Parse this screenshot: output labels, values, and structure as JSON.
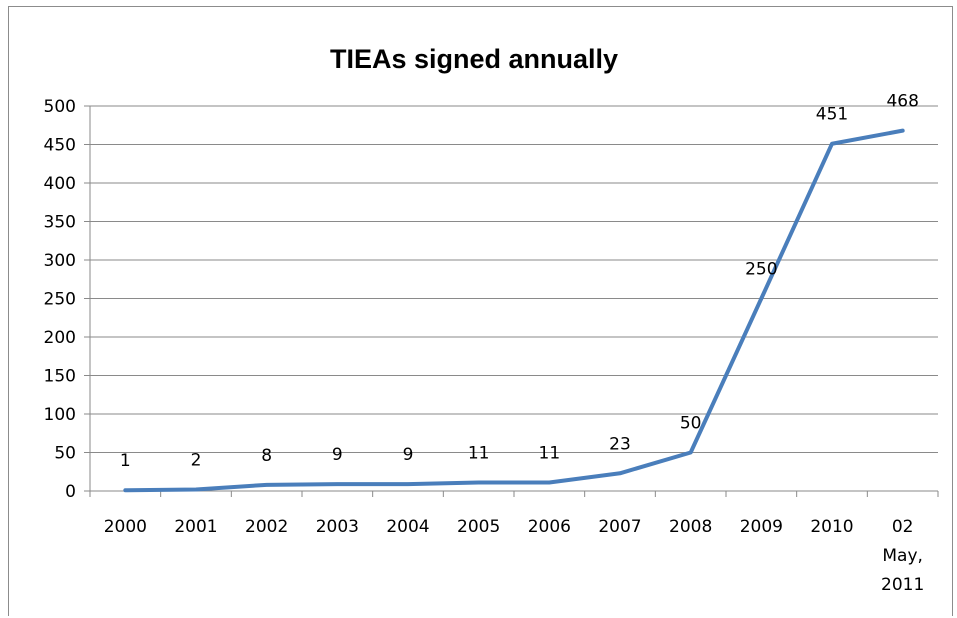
{
  "chart_data": {
    "type": "line",
    "title": "TIEAs signed annually",
    "xlabel": "",
    "ylabel": "",
    "categories": [
      "2000",
      "2001",
      "2002",
      "2003",
      "2004",
      "2005",
      "2006",
      "2007",
      "2008",
      "2009",
      "2010",
      "02 May, 2011"
    ],
    "category_lines": [
      [
        "2000"
      ],
      [
        "2001"
      ],
      [
        "2002"
      ],
      [
        "2003"
      ],
      [
        "2004"
      ],
      [
        "2005"
      ],
      [
        "2006"
      ],
      [
        "2007"
      ],
      [
        "2008"
      ],
      [
        "2009"
      ],
      [
        "2010"
      ],
      [
        "02",
        "May,",
        "2011"
      ]
    ],
    "values": [
      1,
      2,
      8,
      9,
      9,
      11,
      11,
      23,
      50,
      250,
      451,
      468
    ],
    "data_labels": [
      "1",
      "2",
      "8",
      "9",
      "9",
      "11",
      "11",
      "23",
      "50",
      "250",
      "451",
      "468"
    ],
    "y_ticks": [
      "0",
      "50",
      "100",
      "150",
      "200",
      "250",
      "300",
      "350",
      "400",
      "450",
      "500"
    ],
    "ylim": [
      0,
      500
    ],
    "grid": true,
    "legend": "none",
    "line_color": "#4a7ebb"
  }
}
